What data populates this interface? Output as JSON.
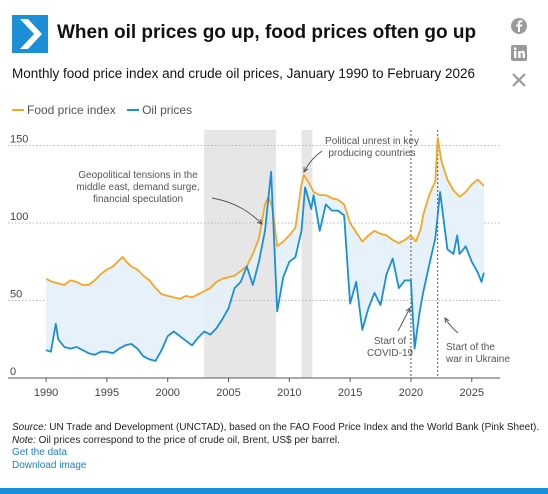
{
  "header": {
    "title": "When oil prices go up, food prices often go up",
    "subtitle": "Monthly food price index and crude oil prices, January 1990 to February 2026"
  },
  "social": {
    "facebook_icon": "facebook-icon",
    "linkedin_icon": "linkedin-icon",
    "x_icon": "x-icon"
  },
  "colors": {
    "food": "#f5a623",
    "oil": "#1a8fd8",
    "fill": "#e4f0f9",
    "shade": "#e6e6e6",
    "accent": "#1b8fd8"
  },
  "chart_data": {
    "type": "line",
    "xlim": [
      1989.5,
      2026.5
    ],
    "ylim": [
      0,
      160
    ],
    "x_ticks": [
      1990,
      1995,
      2000,
      2005,
      2010,
      2015,
      2020,
      2025
    ],
    "y_ticks": [
      0,
      50,
      100,
      150
    ],
    "x_tick_labels": [
      "1990",
      "1995",
      "2000",
      "2005",
      "2010",
      "2015",
      "2020",
      "2025"
    ],
    "y_tick_labels": [
      "0",
      "50",
      "100",
      "150"
    ],
    "legend": [
      "Food price index",
      "Oil prices"
    ],
    "legend_position": "top-left",
    "grid": "horizontal",
    "shaded_periods": [
      [
        2003.0,
        2008.9
      ],
      [
        2011.0,
        2011.9
      ]
    ],
    "event_lines": [
      2020.0,
      2022.2
    ],
    "series": [
      {
        "name": "Food price index",
        "color": "#f5a623",
        "points": [
          [
            1990.0,
            64
          ],
          [
            1990.5,
            62
          ],
          [
            1991.0,
            61
          ],
          [
            1991.5,
            60
          ],
          [
            1992.0,
            63
          ],
          [
            1992.5,
            62
          ],
          [
            1993.0,
            60
          ],
          [
            1993.5,
            60
          ],
          [
            1994.0,
            63
          ],
          [
            1994.5,
            67
          ],
          [
            1995.0,
            70
          ],
          [
            1995.5,
            72
          ],
          [
            1996.0,
            76
          ],
          [
            1996.3,
            78
          ],
          [
            1996.6,
            75
          ],
          [
            1997.0,
            72
          ],
          [
            1997.5,
            70
          ],
          [
            1998.0,
            66
          ],
          [
            1998.5,
            63
          ],
          [
            1999.0,
            58
          ],
          [
            1999.5,
            54
          ],
          [
            2000.0,
            53
          ],
          [
            2000.5,
            52
          ],
          [
            2001.0,
            51
          ],
          [
            2001.5,
            53
          ],
          [
            2002.0,
            52
          ],
          [
            2002.5,
            54
          ],
          [
            2003.0,
            56
          ],
          [
            2003.5,
            58
          ],
          [
            2004.0,
            62
          ],
          [
            2004.5,
            64
          ],
          [
            2005.0,
            65
          ],
          [
            2005.5,
            66
          ],
          [
            2006.0,
            69
          ],
          [
            2006.5,
            72
          ],
          [
            2007.0,
            80
          ],
          [
            2007.5,
            90
          ],
          [
            2008.0,
            112
          ],
          [
            2008.3,
            117
          ],
          [
            2008.6,
            110
          ],
          [
            2009.0,
            85
          ],
          [
            2009.5,
            88
          ],
          [
            2010.0,
            92
          ],
          [
            2010.5,
            97
          ],
          [
            2011.0,
            125
          ],
          [
            2011.2,
            131
          ],
          [
            2011.6,
            126
          ],
          [
            2012.0,
            120
          ],
          [
            2012.5,
            118
          ],
          [
            2013.0,
            118
          ],
          [
            2013.5,
            116
          ],
          [
            2014.0,
            115
          ],
          [
            2014.5,
            112
          ],
          [
            2015.0,
            100
          ],
          [
            2015.5,
            94
          ],
          [
            2016.0,
            88
          ],
          [
            2016.5,
            92
          ],
          [
            2017.0,
            95
          ],
          [
            2017.5,
            93
          ],
          [
            2018.0,
            92
          ],
          [
            2018.5,
            89
          ],
          [
            2019.0,
            87
          ],
          [
            2019.5,
            89
          ],
          [
            2020.0,
            92
          ],
          [
            2020.4,
            88
          ],
          [
            2020.8,
            96
          ],
          [
            2021.0,
            105
          ],
          [
            2021.5,
            118
          ],
          [
            2022.0,
            127
          ],
          [
            2022.2,
            155
          ],
          [
            2022.5,
            140
          ],
          [
            2023.0,
            128
          ],
          [
            2023.5,
            121
          ],
          [
            2024.0,
            117
          ],
          [
            2024.5,
            120
          ],
          [
            2025.0,
            125
          ],
          [
            2025.5,
            128
          ],
          [
            2026.0,
            124
          ]
        ]
      },
      {
        "name": "Oil prices",
        "color": "#1a8fd8",
        "points": [
          [
            1990.0,
            18
          ],
          [
            1990.4,
            17
          ],
          [
            1990.8,
            35
          ],
          [
            1991.0,
            25
          ],
          [
            1991.5,
            20
          ],
          [
            1992.0,
            19
          ],
          [
            1992.5,
            20
          ],
          [
            1993.0,
            18
          ],
          [
            1993.5,
            16
          ],
          [
            1994.0,
            15
          ],
          [
            1994.5,
            17
          ],
          [
            1995.0,
            17
          ],
          [
            1995.5,
            16
          ],
          [
            1996.0,
            19
          ],
          [
            1996.5,
            21
          ],
          [
            1997.0,
            22
          ],
          [
            1997.5,
            19
          ],
          [
            1998.0,
            14
          ],
          [
            1998.5,
            12
          ],
          [
            1999.0,
            11
          ],
          [
            1999.5,
            18
          ],
          [
            2000.0,
            27
          ],
          [
            2000.5,
            30
          ],
          [
            2001.0,
            27
          ],
          [
            2001.5,
            24
          ],
          [
            2002.0,
            21
          ],
          [
            2002.5,
            26
          ],
          [
            2003.0,
            30
          ],
          [
            2003.5,
            28
          ],
          [
            2004.0,
            32
          ],
          [
            2004.5,
            38
          ],
          [
            2005.0,
            45
          ],
          [
            2005.5,
            58
          ],
          [
            2006.0,
            62
          ],
          [
            2006.5,
            72
          ],
          [
            2007.0,
            60
          ],
          [
            2007.5,
            75
          ],
          [
            2008.0,
            95
          ],
          [
            2008.5,
            133
          ],
          [
            2008.8,
            80
          ],
          [
            2009.0,
            43
          ],
          [
            2009.5,
            65
          ],
          [
            2010.0,
            75
          ],
          [
            2010.5,
            78
          ],
          [
            2011.0,
            95
          ],
          [
            2011.3,
            123
          ],
          [
            2011.8,
            109
          ],
          [
            2012.0,
            118
          ],
          [
            2012.5,
            95
          ],
          [
            2013.0,
            112
          ],
          [
            2013.5,
            108
          ],
          [
            2014.0,
            108
          ],
          [
            2014.5,
            105
          ],
          [
            2015.0,
            48
          ],
          [
            2015.5,
            62
          ],
          [
            2016.0,
            31
          ],
          [
            2016.5,
            45
          ],
          [
            2017.0,
            55
          ],
          [
            2017.5,
            47
          ],
          [
            2018.0,
            67
          ],
          [
            2018.5,
            77
          ],
          [
            2019.0,
            58
          ],
          [
            2019.5,
            63
          ],
          [
            2020.0,
            63
          ],
          [
            2020.3,
            19
          ],
          [
            2020.7,
            42
          ],
          [
            2021.0,
            55
          ],
          [
            2021.5,
            73
          ],
          [
            2022.0,
            90
          ],
          [
            2022.4,
            120
          ],
          [
            2022.8,
            95
          ],
          [
            2023.0,
            83
          ],
          [
            2023.5,
            80
          ],
          [
            2023.8,
            92
          ],
          [
            2024.0,
            80
          ],
          [
            2024.5,
            85
          ],
          [
            2025.0,
            75
          ],
          [
            2025.5,
            68
          ],
          [
            2025.8,
            62
          ],
          [
            2026.0,
            68
          ]
        ]
      }
    ],
    "annotations": [
      "Geopolitical tensions in the\nmiddle east, demand surge,\nfinancial speculation",
      "Political unrest in key\nproducing countries",
      "Start of\nCOVID-19",
      "Start of the\nwar in Ukraine"
    ]
  },
  "footer": {
    "source_label": "Source:",
    "source_text": " UN Trade and Development (UNCTAD), based on the FAO Food Price Index and the World Bank (Pink Sheet).",
    "note_label": "Note:",
    "note_text": " Oil prices correspond to the price of crude oil, Brent, US$ per barrel.",
    "get_data": "Get the data",
    "download": "Download image"
  }
}
